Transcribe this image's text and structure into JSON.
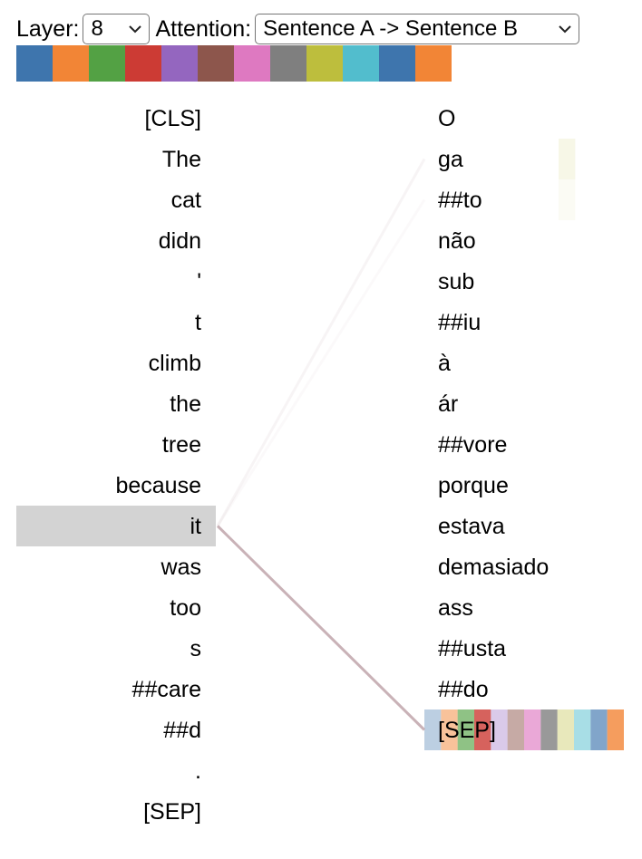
{
  "controls": {
    "layer_label": "Layer:",
    "layer_value": "8",
    "attention_label": "Attention:",
    "attention_value": "Sentence A -> Sentence B"
  },
  "head_colors": [
    "#3e75ad",
    "#f28536",
    "#53a144",
    "#cc3b34",
    "#9466bf",
    "#8d564c",
    "#de79c1",
    "#7f7f7f",
    "#bdbe3d",
    "#52bdcd",
    "#3e75ad",
    "#f28536"
  ],
  "sentence_a": [
    "[CLS]",
    "The",
    "cat",
    "didn",
    "'",
    "t",
    "climb",
    "the",
    "tree",
    "because",
    "it",
    "was",
    "too",
    "s",
    "##care",
    "##d",
    ".",
    "[SEP]"
  ],
  "sentence_b": [
    "O",
    "ga",
    "##to",
    "não",
    "sub",
    "##iu",
    "à",
    "ár",
    "##vore",
    "porque",
    "estava",
    "demasiado",
    "ass",
    "##usta",
    "##do",
    "[SEP]"
  ],
  "selected_left_index": 10,
  "attention_from_selected": [
    0.0,
    0.06,
    0.03,
    0.0,
    0.0,
    0.0,
    0.0,
    0.0,
    0.0,
    0.0,
    0.0,
    0.0,
    0.0,
    0.0,
    0.0,
    0.45
  ],
  "highlight_color": "#d3d3d3",
  "line_color": "#c4aab0"
}
